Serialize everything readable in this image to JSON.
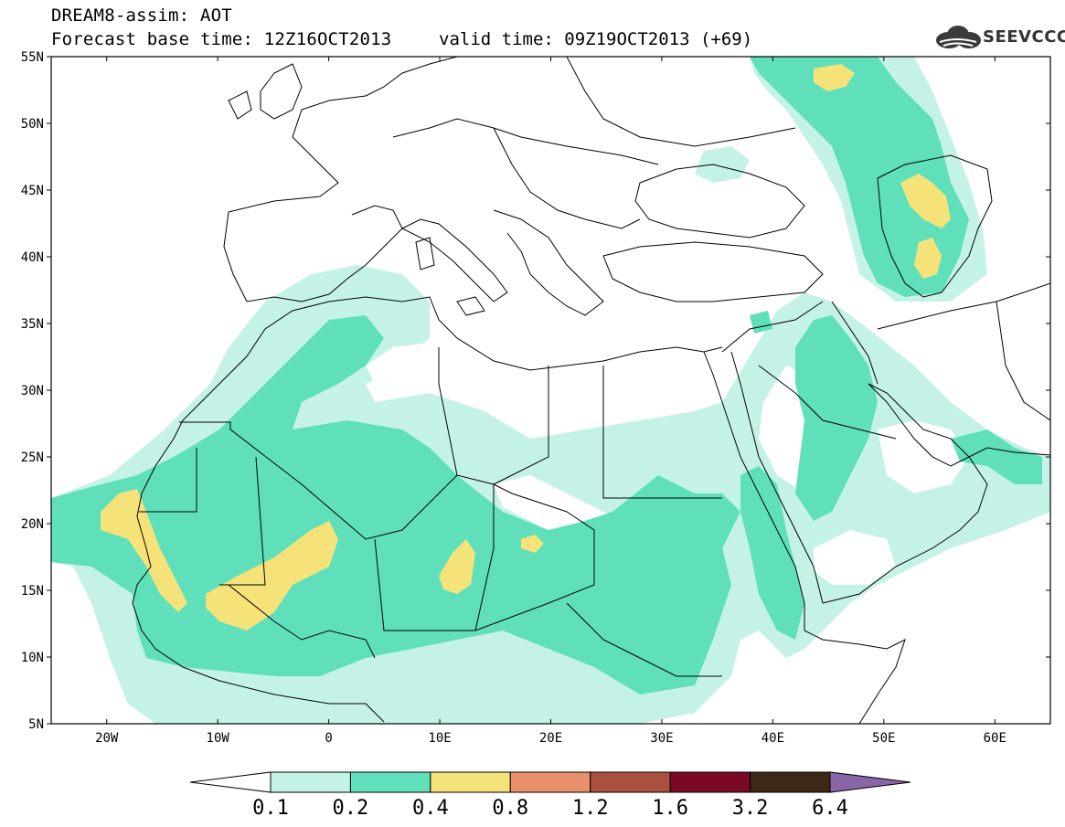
{
  "header": {
    "title": "DREAM8-assim: AOT",
    "base_time": "Forecast base time: 12Z16OCT2013",
    "valid_time": "valid time: 09Z19OCT2013 (+69)",
    "logo_text": "SEEVCCC",
    "logo_icon": "cloud-icon"
  },
  "map": {
    "lon_range": [
      -25,
      65
    ],
    "lat_range": [
      5,
      55
    ],
    "lat_labels": [
      "55N",
      "50N",
      "45N",
      "40N",
      "35N",
      "30N",
      "25N",
      "20N",
      "15N",
      "10N",
      "5N"
    ],
    "lon_labels": [
      "20W",
      "10W",
      "0",
      "10E",
      "20E",
      "30E",
      "40E",
      "50E",
      "60E"
    ],
    "lat_values": [
      55,
      50,
      45,
      40,
      35,
      30,
      25,
      20,
      15,
      10,
      5
    ],
    "lon_values": [
      -20,
      -10,
      0,
      10,
      20,
      30,
      40,
      50,
      60
    ],
    "colorbar_labels": [
      "0.1",
      "0.2",
      "0.4",
      "0.8",
      "1.2",
      "1.6",
      "3.2",
      "6.4"
    ],
    "colorbar_colors": [
      "#ffffff",
      "#c5f2e6",
      "#5fe0bb",
      "#f5e37a",
      "#e8916a",
      "#a9503f",
      "#7a0826",
      "#3c2815",
      "#8a65a8"
    ],
    "color_low": "#c5f2e6",
    "color_mid": "#5fe0bb",
    "color_high": "#f5e37a"
  }
}
